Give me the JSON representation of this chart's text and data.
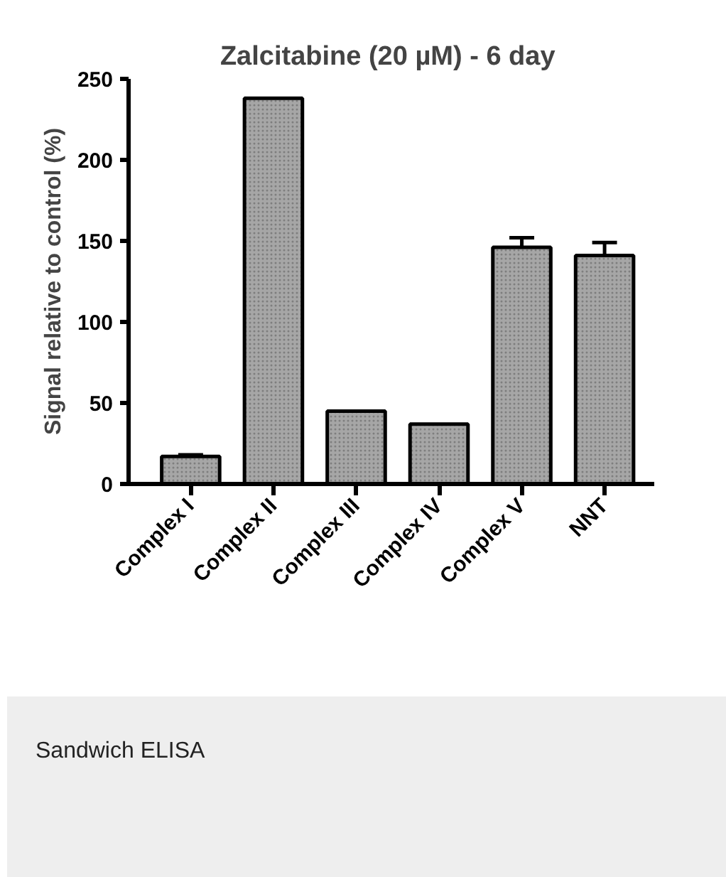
{
  "chart_data": {
    "type": "bar",
    "title": "Zalcitabine (20 µM)  - 6 day",
    "ylabel": "Signal relative to control (%)",
    "categories": [
      "Complex I",
      "Complex II",
      "Complex III",
      "Complex IV",
      "Complex V",
      "NNT"
    ],
    "values": [
      17,
      238,
      45,
      37,
      146,
      141
    ],
    "errors": [
      1,
      null,
      null,
      null,
      6,
      8
    ],
    "color": "#a6a6a6",
    "ylim": [
      0,
      250
    ],
    "yticks": [
      0,
      50,
      100,
      150,
      200,
      250
    ],
    "grid": false,
    "annotations": [
      "Sandwich ELISA"
    ]
  }
}
